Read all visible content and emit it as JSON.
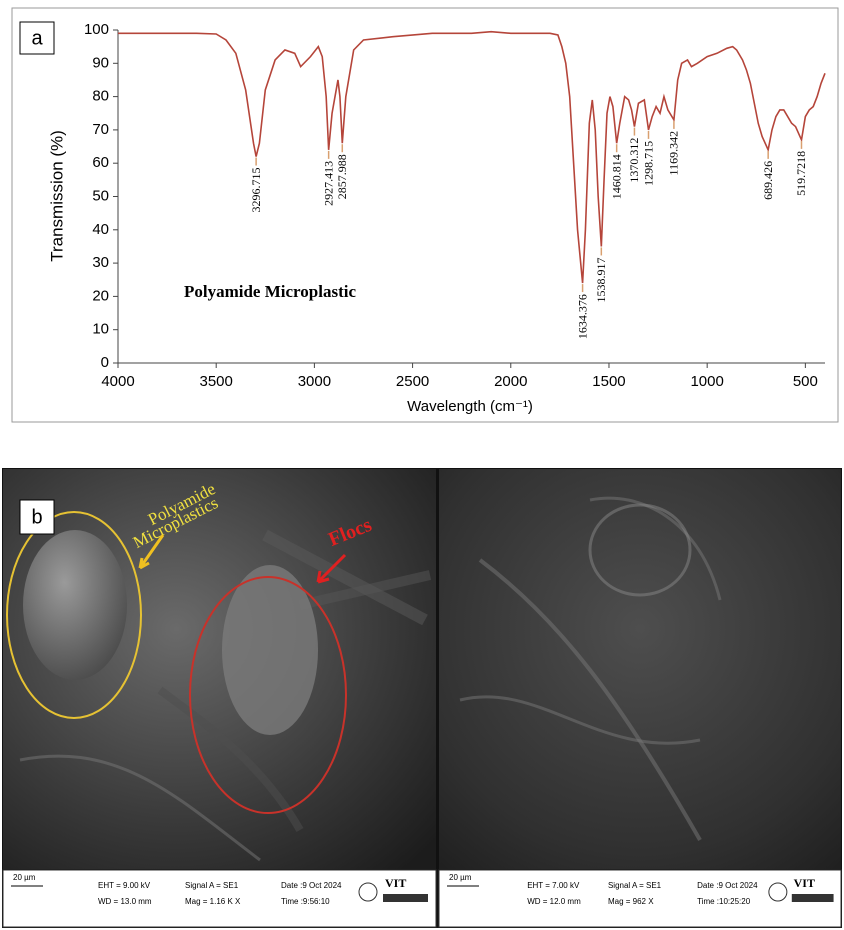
{
  "chart_data": {
    "type": "line",
    "panel_label": "a",
    "annotation": "Polyamide Microplastic",
    "xlabel": "Wavelength (cm⁻¹)",
    "ylabel": "Transmission (%)",
    "xlim": [
      4000,
      400
    ],
    "xticks": [
      4000,
      3500,
      3000,
      2500,
      2000,
      1500,
      1000,
      500
    ],
    "ylim": [
      0,
      100
    ],
    "yticks": [
      0,
      10,
      20,
      30,
      40,
      50,
      60,
      70,
      80,
      90,
      100
    ],
    "x": [
      4000,
      3800,
      3600,
      3500,
      3450,
      3400,
      3350,
      3310,
      3296.715,
      3280,
      3250,
      3200,
      3150,
      3100,
      3070,
      3020,
      2980,
      2960,
      2940,
      2927.413,
      2910,
      2880,
      2870,
      2857.988,
      2840,
      2800,
      2750,
      2600,
      2400,
      2200,
      2100,
      2000,
      1800,
      1760,
      1740,
      1720,
      1700,
      1680,
      1660,
      1634.376,
      1620,
      1600,
      1585,
      1570,
      1555,
      1538.917,
      1525,
      1510,
      1495,
      1480,
      1460.814,
      1445,
      1420,
      1400,
      1385,
      1370.312,
      1350,
      1320,
      1298.715,
      1280,
      1260,
      1240,
      1220,
      1200,
      1169.342,
      1150,
      1130,
      1100,
      1080,
      1050,
      1000,
      950,
      900,
      870,
      850,
      820,
      800,
      780,
      760,
      740,
      720,
      689.426,
      670,
      650,
      630,
      610,
      590,
      570,
      550,
      519.7218,
      500,
      480,
      460,
      440,
      420,
      400
    ],
    "series": [
      {
        "color": "#b5453a",
        "values": [
          99,
          99,
          99,
          98.8,
          97,
          93,
          82,
          66,
          62,
          66,
          82,
          91,
          94,
          93,
          89,
          92,
          95,
          92,
          80,
          64,
          75,
          85,
          80,
          66,
          80,
          94,
          97,
          98,
          99,
          99,
          99.5,
          99,
          99,
          98.5,
          95,
          90,
          80,
          60,
          40,
          24,
          40,
          72,
          79,
          70,
          50,
          35,
          55,
          75,
          80,
          77,
          66,
          72,
          80,
          79,
          76,
          71,
          78,
          79,
          70,
          74,
          77,
          75,
          80,
          76,
          73,
          85,
          90,
          91,
          89,
          90,
          92,
          93,
          94.5,
          95,
          94,
          91,
          88,
          84,
          78,
          72,
          68,
          64,
          70,
          74,
          76,
          76,
          74,
          72,
          71,
          67,
          74,
          76,
          77,
          80,
          84,
          87
        ]
      }
    ],
    "peaks": [
      {
        "x": 3296.715,
        "y": 62
      },
      {
        "x": 2927.413,
        "y": 64
      },
      {
        "x": 2857.988,
        "y": 66
      },
      {
        "x": 1634.376,
        "y": 24
      },
      {
        "x": 1538.917,
        "y": 35
      },
      {
        "x": 1460.814,
        "y": 66
      },
      {
        "x": 1370.312,
        "y": 71
      },
      {
        "x": 1298.715,
        "y": 70
      },
      {
        "x": 1169.342,
        "y": 73
      },
      {
        "x": 689.426,
        "y": 64
      },
      {
        "x": 519.7218,
        "y": 67
      }
    ]
  },
  "panel_b": {
    "label": "b",
    "callout_1": [
      "Polyamide",
      "Microplastics"
    ],
    "callout_2": "Flocs",
    "images": [
      {
        "scale": "20 µm",
        "eht": "EHT = 9.00 kV",
        "wd": "WD = 13.0 mm",
        "signal": "Signal A = SE1",
        "mag": "Mag = 1.16 K X",
        "date": "Date :9 Oct 2024",
        "time": "Time :9:56:10",
        "logo": "VIT"
      },
      {
        "scale": "20 µm",
        "eht": "EHT = 7.00 kV",
        "wd": "WD = 12.0 mm",
        "signal": "Signal A = SE1",
        "mag": "Mag = 962 X",
        "date": "Date :9 Oct 2024",
        "time": "Time :10:25:20",
        "logo": "VIT"
      }
    ]
  }
}
